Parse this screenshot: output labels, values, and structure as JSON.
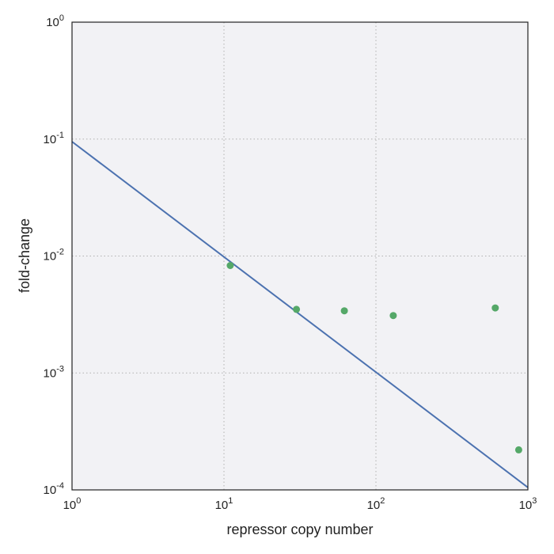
{
  "chart_data": {
    "type": "scatter",
    "title": "",
    "xlabel": "repressor copy number",
    "ylabel": "fold-change",
    "xscale": "log",
    "yscale": "log",
    "xlim": [
      1,
      1000
    ],
    "ylim": [
      0.0001,
      1
    ],
    "grid": true,
    "x_ticks": [
      {
        "value": 1,
        "base": "10",
        "exp": "0"
      },
      {
        "value": 10,
        "base": "10",
        "exp": "1"
      },
      {
        "value": 100,
        "base": "10",
        "exp": "2"
      },
      {
        "value": 1000,
        "base": "10",
        "exp": "3"
      }
    ],
    "y_ticks": [
      {
        "value": 0.0001,
        "base": "10",
        "exp": "-4"
      },
      {
        "value": 0.001,
        "base": "10",
        "exp": "-3"
      },
      {
        "value": 0.01,
        "base": "10",
        "exp": "-2"
      },
      {
        "value": 0.1,
        "base": "10",
        "exp": "-1"
      },
      {
        "value": 1,
        "base": "10",
        "exp": "0"
      }
    ],
    "series": [
      {
        "kind": "line",
        "color": "#4c72b0",
        "x": [
          1,
          1000
        ],
        "y": [
          0.095,
          0.000105
        ]
      },
      {
        "kind": "scatter",
        "color": "#55a868",
        "x": [
          11,
          30,
          62,
          130,
          610,
          870
        ],
        "y": [
          0.0083,
          0.0035,
          0.0034,
          0.0031,
          0.0036,
          0.00022
        ]
      }
    ],
    "colors": {
      "plot_background": "#f2f2f5",
      "grid": "#b0b0b0",
      "frame": "#222222"
    }
  }
}
